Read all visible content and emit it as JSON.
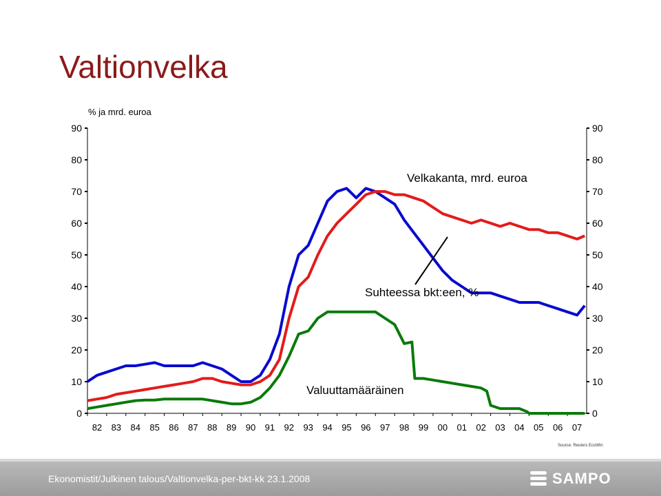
{
  "slide": {
    "title": "Valtionvelka",
    "footer": "Ekonomistit/Julkinen talous/Valtionvelka-per-bkt-kk  23.1.2008",
    "logo_text": "SAMPO",
    "logo_icon": "sampo-logo-icon",
    "source": "Source: Reuters EcoWin"
  },
  "chart_data": {
    "type": "line",
    "unit_label": "% ja mrd. euroa",
    "x_ticks": [
      "82",
      "83",
      "84",
      "85",
      "86",
      "87",
      "88",
      "89",
      "90",
      "91",
      "92",
      "93",
      "94",
      "95",
      "96",
      "97",
      "98",
      "99",
      "00",
      "01",
      "02",
      "03",
      "04",
      "05",
      "06",
      "07"
    ],
    "xlim": [
      1982.0,
      2008.0
    ],
    "y_ticks": [
      0,
      10,
      20,
      30,
      40,
      50,
      60,
      70,
      80,
      90
    ],
    "ylim": [
      0,
      90
    ],
    "grid": false,
    "annotations": {
      "velkakanta": "Velkakanta, mrd. euroa",
      "suhteessa": "Suhteessa bkt:een, %",
      "valuutta": "Valuuttamääräinen"
    },
    "colors": {
      "red": "#e31b1b",
      "blue": "#0a0ad0",
      "green": "#0a7a0a"
    },
    "series": [
      {
        "key": "suhteessa",
        "color": "#0a0ad0",
        "x": [
          1982.0,
          1982.5,
          1983.0,
          1983.5,
          1984.0,
          1984.5,
          1985.0,
          1985.5,
          1986.0,
          1986.5,
          1987.0,
          1987.5,
          1988.0,
          1988.5,
          1989.0,
          1989.5,
          1990.0,
          1990.5,
          1991.0,
          1991.5,
          1992.0,
          1992.5,
          1993.0,
          1993.5,
          1994.0,
          1994.5,
          1995.0,
          1995.5,
          1996.0,
          1996.5,
          1997.0,
          1997.5,
          1998.0,
          1998.5,
          1999.0,
          1999.5,
          2000.0,
          2000.5,
          2001.0,
          2001.5,
          2002.0,
          2002.5,
          2003.0,
          2003.5,
          2004.0,
          2004.5,
          2005.0,
          2005.5,
          2006.0,
          2006.5,
          2007.0,
          2007.5,
          2007.9
        ],
        "y": [
          10,
          12,
          13,
          14,
          15,
          15,
          15.5,
          16,
          15,
          15,
          15,
          15,
          16,
          15,
          14,
          12,
          10,
          10,
          12,
          17,
          25,
          40,
          50,
          53,
          60,
          67,
          70,
          71,
          68,
          71,
          70,
          68,
          66,
          61,
          57,
          53,
          49,
          45,
          42,
          40,
          38,
          38,
          38,
          37,
          36,
          35,
          35,
          35,
          34,
          33,
          32,
          31,
          34
        ]
      },
      {
        "key": "velkakanta",
        "color": "#e31b1b",
        "x": [
          1982.0,
          1982.5,
          1983.0,
          1983.5,
          1984.0,
          1984.5,
          1985.0,
          1985.5,
          1986.0,
          1986.5,
          1987.0,
          1987.5,
          1988.0,
          1988.5,
          1989.0,
          1989.5,
          1990.0,
          1990.5,
          1991.0,
          1991.5,
          1992.0,
          1992.5,
          1993.0,
          1993.5,
          1994.0,
          1994.5,
          1995.0,
          1995.5,
          1996.0,
          1996.5,
          1997.0,
          1997.5,
          1998.0,
          1998.5,
          1999.0,
          1999.5,
          2000.0,
          2000.5,
          2001.0,
          2001.5,
          2002.0,
          2002.5,
          2003.0,
          2003.5,
          2004.0,
          2004.5,
          2005.0,
          2005.5,
          2006.0,
          2006.5,
          2007.0,
          2007.5,
          2007.9
        ],
        "y": [
          4,
          4.5,
          5,
          6,
          6.5,
          7,
          7.5,
          8,
          8.5,
          9,
          9.5,
          10,
          11,
          11,
          10,
          9.5,
          9,
          9,
          10,
          12,
          17,
          30,
          40,
          43,
          50,
          56,
          60,
          63,
          66,
          69,
          70,
          70,
          69,
          69,
          68,
          67,
          65,
          63,
          62,
          61,
          60,
          61,
          60,
          59,
          60,
          59,
          58,
          58,
          57,
          57,
          56,
          55,
          56
        ]
      },
      {
        "key": "valuutta",
        "color": "#0a7a0a",
        "x": [
          1982.0,
          1982.5,
          1983.0,
          1983.5,
          1984.0,
          1984.5,
          1985.0,
          1985.5,
          1986.0,
          1986.5,
          1987.0,
          1987.5,
          1988.0,
          1988.5,
          1989.0,
          1989.5,
          1990.0,
          1990.5,
          1991.0,
          1991.5,
          1992.0,
          1992.5,
          1993.0,
          1993.5,
          1994.0,
          1994.5,
          1995.0,
          1995.5,
          1996.0,
          1996.5,
          1997.0,
          1997.5,
          1998.0,
          1998.5,
          1998.9,
          1999.05,
          1999.5,
          2000.0,
          2000.5,
          2001.0,
          2001.5,
          2002.0,
          2002.5,
          2002.8,
          2003.0,
          2003.5,
          2004.0,
          2004.5,
          2004.9,
          2005.0,
          2005.5,
          2006.0,
          2006.5,
          2007.0,
          2007.5,
          2007.9
        ],
        "y": [
          1.5,
          2,
          2.5,
          3,
          3.5,
          4,
          4.2,
          4.2,
          4.5,
          4.5,
          4.5,
          4.5,
          4.5,
          4,
          3.5,
          3,
          3,
          3.5,
          5,
          8,
          12,
          18,
          25,
          26,
          30,
          32,
          32,
          32,
          32,
          32,
          32,
          30,
          28,
          22,
          22.5,
          11,
          11,
          10.5,
          10,
          9.5,
          9,
          8.5,
          8,
          7,
          2.5,
          1.5,
          1.5,
          1.5,
          0.5,
          0,
          0,
          0,
          0,
          0,
          0,
          0
        ]
      }
    ]
  }
}
